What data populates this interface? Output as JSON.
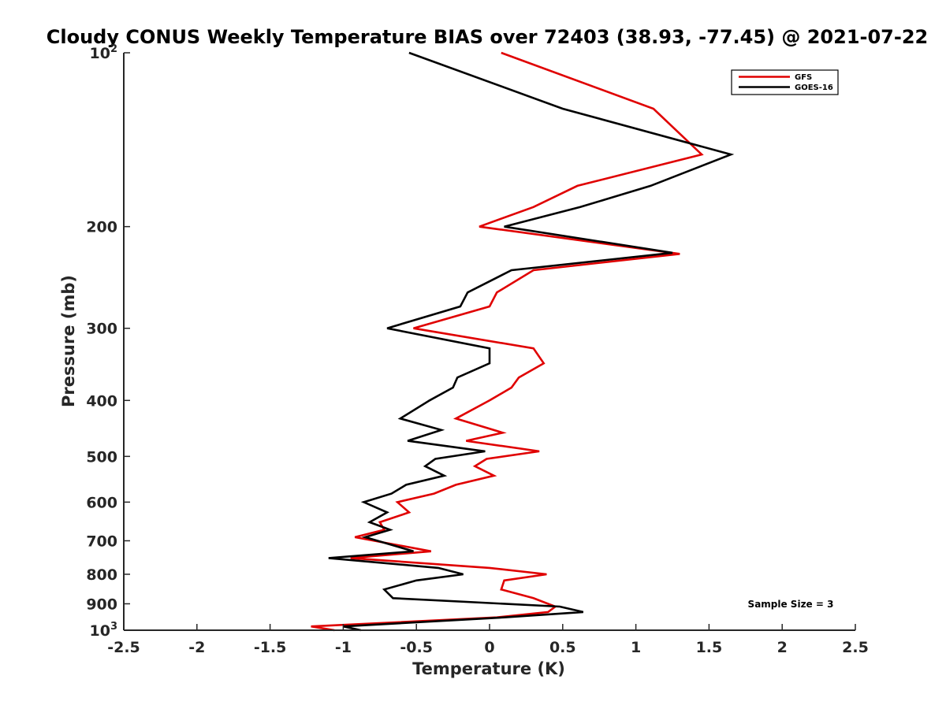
{
  "chart_data": {
    "type": "line",
    "title": "Cloudy CONUS Weekly Temperature BIAS over 72403 (38.93, -77.45) @ 2021-07-22",
    "xlabel": "Temperature (K)",
    "ylabel": "Pressure (mb)",
    "xlim": [
      -2.5,
      2.5
    ],
    "ylim": [
      100,
      1000
    ],
    "y_scale": "log",
    "y_reversed": true,
    "x_ticks": [
      "-2.5",
      "-2",
      "-1.5",
      "-1",
      "-0.5",
      "0",
      "0.5",
      "1",
      "1.5",
      "2",
      "2.5"
    ],
    "x_tick_values": [
      -2.5,
      -2,
      -1.5,
      -1,
      -0.5,
      0,
      0.5,
      1,
      1.5,
      2,
      2.5
    ],
    "y_ticks": [
      {
        "value": 100,
        "base": "10",
        "exp": "2"
      },
      {
        "value": 200,
        "label": "200"
      },
      {
        "value": 300,
        "label": "300"
      },
      {
        "value": 400,
        "label": "400"
      },
      {
        "value": 500,
        "label": "500"
      },
      {
        "value": 600,
        "label": "600"
      },
      {
        "value": 700,
        "label": "700"
      },
      {
        "value": 800,
        "label": "800"
      },
      {
        "value": 900,
        "label": "900"
      },
      {
        "value": 1000,
        "base": "10",
        "exp": "3"
      }
    ],
    "grid": false,
    "legend_position": "top-right",
    "series": [
      {
        "name": "GFS",
        "color": "#e00000",
        "points": [
          [
            0.08,
            100
          ],
          [
            1.12,
            125
          ],
          [
            1.45,
            150
          ],
          [
            0.6,
            170
          ],
          [
            0.3,
            185
          ],
          [
            -0.07,
            200
          ],
          [
            1.3,
            223
          ],
          [
            0.3,
            238
          ],
          [
            0.05,
            260
          ],
          [
            0.0,
            275
          ],
          [
            -0.52,
            300
          ],
          [
            0.3,
            325
          ],
          [
            0.37,
            345
          ],
          [
            0.2,
            365
          ],
          [
            0.15,
            380
          ],
          [
            0.0,
            400
          ],
          [
            -0.23,
            430
          ],
          [
            0.09,
            455
          ],
          [
            -0.16,
            470
          ],
          [
            0.34,
            490
          ],
          [
            -0.02,
            505
          ],
          [
            -0.1,
            520
          ],
          [
            0.03,
            540
          ],
          [
            -0.23,
            560
          ],
          [
            -0.38,
            580
          ],
          [
            -0.63,
            600
          ],
          [
            -0.55,
            625
          ],
          [
            -0.75,
            650
          ],
          [
            -0.72,
            670
          ],
          [
            -0.92,
            690
          ],
          [
            -0.4,
            730
          ],
          [
            -0.95,
            750
          ],
          [
            0.0,
            780
          ],
          [
            0.39,
            800
          ],
          [
            0.1,
            820
          ],
          [
            0.08,
            850
          ],
          [
            0.3,
            880
          ],
          [
            0.45,
            910
          ],
          [
            0.4,
            930
          ],
          [
            0.05,
            950
          ],
          [
            -1.22,
            985
          ],
          [
            -1.06,
            1000
          ]
        ]
      },
      {
        "name": "GOES-16",
        "color": "#000000",
        "points": [
          [
            -0.55,
            100
          ],
          [
            0.5,
            125
          ],
          [
            1.65,
            150
          ],
          [
            1.1,
            170
          ],
          [
            0.62,
            185
          ],
          [
            0.1,
            200
          ],
          [
            1.25,
            222
          ],
          [
            0.15,
            238
          ],
          [
            -0.15,
            260
          ],
          [
            -0.2,
            275
          ],
          [
            -0.7,
            300
          ],
          [
            0.0,
            325
          ],
          [
            0.0,
            345
          ],
          [
            -0.22,
            365
          ],
          [
            -0.25,
            380
          ],
          [
            -0.41,
            400
          ],
          [
            -0.61,
            430
          ],
          [
            -0.33,
            450
          ],
          [
            -0.56,
            470
          ],
          [
            -0.03,
            490
          ],
          [
            -0.37,
            505
          ],
          [
            -0.44,
            520
          ],
          [
            -0.31,
            540
          ],
          [
            -0.57,
            560
          ],
          [
            -0.67,
            580
          ],
          [
            -0.86,
            600
          ],
          [
            -0.7,
            625
          ],
          [
            -0.82,
            650
          ],
          [
            -0.68,
            670
          ],
          [
            -0.85,
            690
          ],
          [
            -0.52,
            730
          ],
          [
            -1.1,
            750
          ],
          [
            -0.35,
            780
          ],
          [
            -0.18,
            800
          ],
          [
            -0.5,
            820
          ],
          [
            -0.72,
            850
          ],
          [
            -0.66,
            880
          ],
          [
            0.48,
            910
          ],
          [
            0.64,
            930
          ],
          [
            0.1,
            950
          ],
          [
            -1.0,
            985
          ],
          [
            -0.88,
            1000
          ]
        ]
      }
    ],
    "annotation": "Sample Size = 3"
  }
}
